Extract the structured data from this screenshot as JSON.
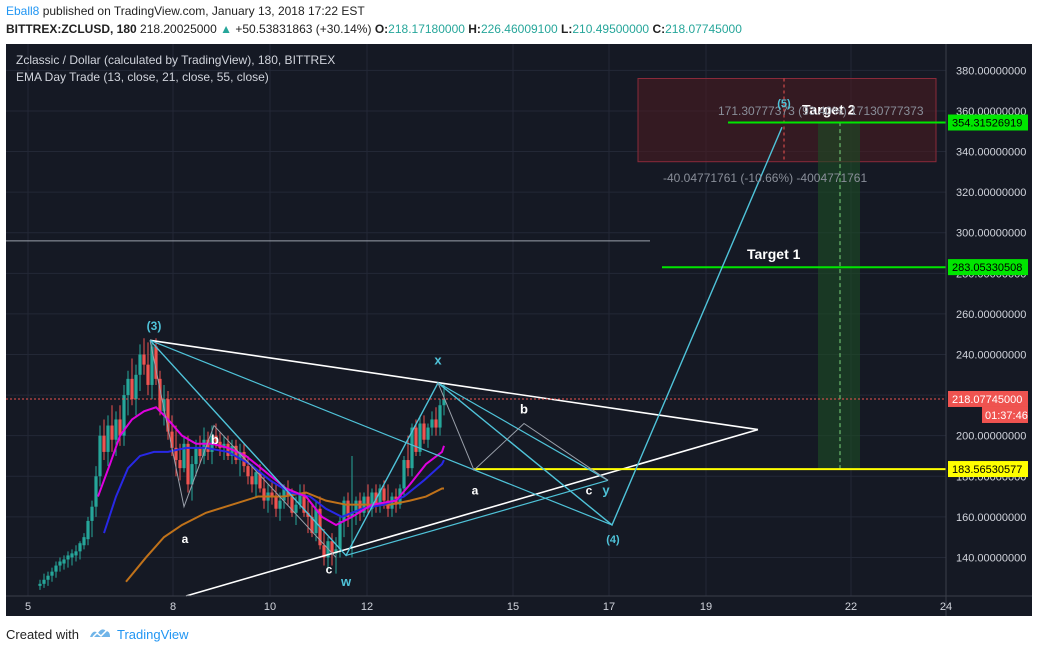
{
  "header": {
    "author": "Eball8",
    "published": "published on TradingView.com, January 13, 2018 17:22 EST",
    "symbol_line": "BITTREX:ZCLUSD, 180",
    "price": "218.20025000",
    "change": "+50.53831863 (+30.14%)",
    "o_label": "O:",
    "o_value": "218.17180000",
    "h_label": "H:",
    "h_value": "226.46009100",
    "l_label": "L:",
    "l_value": "210.49500000",
    "c_label": "C:",
    "c_value": "218.07745000"
  },
  "chart_data": {
    "type": "candlestick",
    "title": "Zclassic / Dollar (calculated by TradingView), 180, BITTREX",
    "indicator": "EMA Day Trade (13, close, 21, close, 55, close)",
    "x_ticks": [
      "5",
      "8",
      "10",
      "12",
      "15",
      "17",
      "19",
      "22",
      "24"
    ],
    "y_ticks": [
      140,
      160,
      180,
      200,
      220,
      240,
      260,
      280,
      300,
      320,
      340,
      360,
      380
    ],
    "y_tick_labels": [
      "140.00000000",
      "160.00000000",
      "180.00000000",
      "200.00000000",
      "220.00000000",
      "240.00000000",
      "260.00000000",
      "280.00000000",
      "300.00000000",
      "320.00000000",
      "340.00000000",
      "360.00000000",
      "380.00000000"
    ],
    "ylim": [
      121,
      393
    ],
    "price_labels": [
      {
        "value": 354.31526919,
        "text": "354.31526919",
        "color": "#00e600"
      },
      {
        "value": 283.05330508,
        "text": "283.05330508",
        "color": "#00e600"
      },
      {
        "value": 218.07745,
        "text": "218.07745000",
        "color": "#ef5350"
      },
      {
        "value": 183.56530577,
        "text": "183.56530577",
        "color": "#ffff00"
      }
    ],
    "countdown": "01:37:46",
    "targets": [
      {
        "name": "Target 2",
        "value": 354.31526919
      },
      {
        "name": "Target 1",
        "value": 283.05330508
      }
    ],
    "support": 183.56530577,
    "last_price": 218.07745,
    "measure_up": "171.30777373 (93.40%) 17130777373",
    "measure_down": "-40.04771761 (-10.66%) -4004771761",
    "wave_labels": [
      "(3)",
      "b",
      "a",
      "c",
      "w",
      "x",
      "a",
      "b",
      "c",
      "y",
      "(4)",
      "(5)"
    ],
    "candles": [
      [
        34,
        126,
        129,
        124,
        127
      ],
      [
        38,
        127,
        132,
        125,
        129
      ],
      [
        42,
        129,
        133,
        126,
        131
      ],
      [
        46,
        131,
        135,
        128,
        133
      ],
      [
        50,
        133,
        138,
        130,
        136
      ],
      [
        54,
        136,
        140,
        133,
        138
      ],
      [
        58,
        137,
        141,
        134,
        139
      ],
      [
        62,
        139,
        143,
        135,
        141
      ],
      [
        66,
        140,
        144,
        136,
        142
      ],
      [
        70,
        141,
        146,
        138,
        143
      ],
      [
        74,
        143,
        148,
        139,
        147
      ],
      [
        78,
        146,
        152,
        144,
        150
      ],
      [
        82,
        149,
        160,
        146,
        158
      ],
      [
        86,
        158,
        168,
        150,
        165
      ],
      [
        90,
        165,
        185,
        160,
        180
      ],
      [
        94,
        180,
        205,
        175,
        200
      ],
      [
        98,
        200,
        208,
        188,
        192
      ],
      [
        102,
        192,
        210,
        185,
        205
      ],
      [
        106,
        205,
        215,
        192,
        198
      ],
      [
        110,
        198,
        212,
        190,
        208
      ],
      [
        114,
        208,
        215,
        195,
        200
      ],
      [
        118,
        200,
        225,
        195,
        220
      ],
      [
        122,
        220,
        232,
        210,
        228
      ],
      [
        126,
        228,
        238,
        215,
        218
      ],
      [
        130,
        218,
        235,
        210,
        230
      ],
      [
        134,
        230,
        245,
        222,
        240
      ],
      [
        138,
        240,
        248,
        230,
        235
      ],
      [
        142,
        235,
        246,
        220,
        225
      ],
      [
        146,
        225,
        247,
        218,
        244
      ],
      [
        150,
        244,
        248,
        225,
        228
      ],
      [
        154,
        228,
        232,
        210,
        212
      ],
      [
        158,
        212,
        225,
        205,
        218
      ],
      [
        162,
        218,
        222,
        198,
        202
      ],
      [
        166,
        202,
        210,
        190,
        194
      ],
      [
        170,
        194,
        205,
        180,
        188
      ],
      [
        174,
        188,
        196,
        178,
        184
      ],
      [
        178,
        184,
        200,
        182,
        196
      ],
      [
        182,
        196,
        200,
        172,
        176
      ],
      [
        186,
        176,
        190,
        168,
        186
      ],
      [
        190,
        186,
        198,
        180,
        194
      ],
      [
        194,
        194,
        200,
        186,
        190
      ],
      [
        198,
        190,
        204,
        186,
        198
      ],
      [
        202,
        198,
        202,
        188,
        192
      ],
      [
        206,
        192,
        205,
        186,
        200
      ],
      [
        210,
        200,
        206,
        194,
        197
      ],
      [
        214,
        197,
        202,
        190,
        194
      ],
      [
        218,
        194,
        200,
        188,
        196
      ],
      [
        222,
        196,
        200,
        188,
        190
      ],
      [
        226,
        190,
        198,
        186,
        195
      ],
      [
        230,
        195,
        198,
        186,
        188
      ],
      [
        234,
        188,
        196,
        180,
        192
      ],
      [
        238,
        192,
        196,
        182,
        185
      ],
      [
        242,
        185,
        190,
        176,
        180
      ],
      [
        246,
        180,
        186,
        172,
        176
      ],
      [
        250,
        176,
        184,
        170,
        182
      ],
      [
        254,
        182,
        186,
        172,
        174
      ],
      [
        258,
        174,
        180,
        164,
        168
      ],
      [
        262,
        168,
        176,
        162,
        172
      ],
      [
        266,
        172,
        178,
        166,
        170
      ],
      [
        270,
        170,
        176,
        160,
        164
      ],
      [
        274,
        164,
        172,
        158,
        168
      ],
      [
        278,
        168,
        176,
        164,
        174
      ],
      [
        282,
        174,
        178,
        166,
        170
      ],
      [
        286,
        170,
        174,
        160,
        162
      ],
      [
        290,
        162,
        170,
        156,
        166
      ],
      [
        294,
        166,
        176,
        164,
        172
      ],
      [
        298,
        172,
        176,
        160,
        162
      ],
      [
        302,
        162,
        168,
        152,
        160
      ],
      [
        306,
        160,
        166,
        150,
        152
      ],
      [
        310,
        152,
        168,
        148,
        164
      ],
      [
        314,
        164,
        170,
        144,
        146
      ],
      [
        318,
        146,
        154,
        136,
        140
      ],
      [
        322,
        140,
        150,
        134,
        148
      ],
      [
        326,
        148,
        152,
        136,
        142
      ],
      [
        330,
        142,
        150,
        132,
        144
      ],
      [
        334,
        144,
        160,
        140,
        158
      ],
      [
        338,
        158,
        170,
        150,
        168
      ],
      [
        342,
        168,
        172,
        155,
        160
      ],
      [
        346,
        160,
        190,
        140,
        162
      ],
      [
        350,
        162,
        170,
        156,
        168
      ],
      [
        354,
        168,
        172,
        158,
        162
      ],
      [
        358,
        162,
        172,
        160,
        170
      ],
      [
        362,
        170,
        176,
        162,
        164
      ],
      [
        366,
        164,
        174,
        160,
        172
      ],
      [
        370,
        172,
        176,
        162,
        166
      ],
      [
        374,
        166,
        176,
        162,
        174
      ],
      [
        378,
        174,
        178,
        164,
        168
      ],
      [
        382,
        168,
        176,
        160,
        164
      ],
      [
        386,
        164,
        172,
        160,
        170
      ],
      [
        390,
        170,
        174,
        162,
        166
      ],
      [
        394,
        166,
        176,
        164,
        174
      ],
      [
        398,
        174,
        190,
        170,
        188
      ],
      [
        402,
        188,
        200,
        180,
        184
      ],
      [
        406,
        184,
        206,
        180,
        204
      ],
      [
        410,
        204,
        208,
        190,
        192
      ],
      [
        414,
        192,
        210,
        190,
        206
      ],
      [
        418,
        206,
        210,
        196,
        198
      ],
      [
        422,
        198,
        206,
        194,
        204
      ],
      [
        426,
        204,
        212,
        200,
        208
      ],
      [
        430,
        208,
        214,
        200,
        204
      ],
      [
        434,
        204,
        218,
        200,
        215
      ],
      [
        438,
        215,
        226,
        210,
        218
      ]
    ]
  },
  "footer": {
    "created": "Created with",
    "brand": "TradingView"
  }
}
